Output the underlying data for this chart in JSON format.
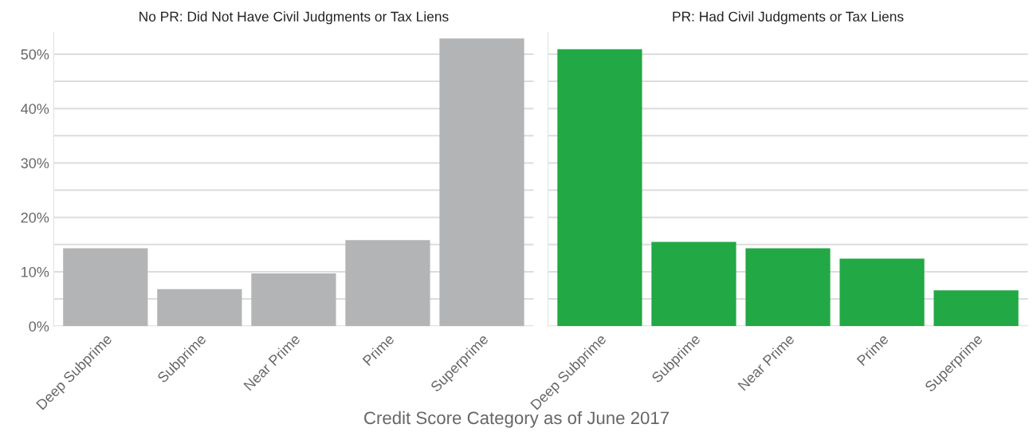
{
  "chart_data": [
    {
      "type": "bar",
      "title": "No PR: Did Not Have Civil Judgments or Tax Liens",
      "xlabel": "Credit Score Category as of June 2017",
      "categories": [
        "Deep Subprime",
        "Subprime",
        "Near Prime",
        "Prime",
        "Superprime"
      ],
      "values": [
        14.3,
        6.8,
        9.7,
        15.8,
        52.9
      ],
      "color": "#b3b4b6",
      "ylim": [
        0,
        54
      ],
      "yticks": [
        {
          "value": 0,
          "label": "0%"
        },
        {
          "value": 5,
          "label": null
        },
        {
          "value": 10,
          "label": "10%"
        },
        {
          "value": 15,
          "label": null
        },
        {
          "value": 20,
          "label": "20%"
        },
        {
          "value": 25,
          "label": null
        },
        {
          "value": 30,
          "label": "30%"
        },
        {
          "value": 35,
          "label": null
        },
        {
          "value": 40,
          "label": "40%"
        },
        {
          "value": 45,
          "label": null
        },
        {
          "value": 50,
          "label": "50%"
        }
      ],
      "grid": "y"
    },
    {
      "type": "bar",
      "title": "PR: Had Civil Judgments or Tax Liens",
      "categories": [
        "Deep Subprime",
        "Subprime",
        "Near Prime",
        "Prime",
        "Superprime"
      ],
      "values": [
        50.9,
        15.5,
        14.3,
        12.4,
        6.6
      ],
      "color": "#22a844",
      "ylim": [
        0,
        54
      ],
      "yticks": [
        {
          "value": 0,
          "label": null
        },
        {
          "value": 5,
          "label": null
        },
        {
          "value": 10,
          "label": null
        },
        {
          "value": 15,
          "label": null
        },
        {
          "value": 20,
          "label": null
        },
        {
          "value": 25,
          "label": null
        },
        {
          "value": 30,
          "label": null
        },
        {
          "value": 35,
          "label": null
        },
        {
          "value": 40,
          "label": null
        },
        {
          "value": 45,
          "label": null
        },
        {
          "value": 50,
          "label": null
        }
      ],
      "grid": "y",
      "tick_labels": "x"
    }
  ]
}
